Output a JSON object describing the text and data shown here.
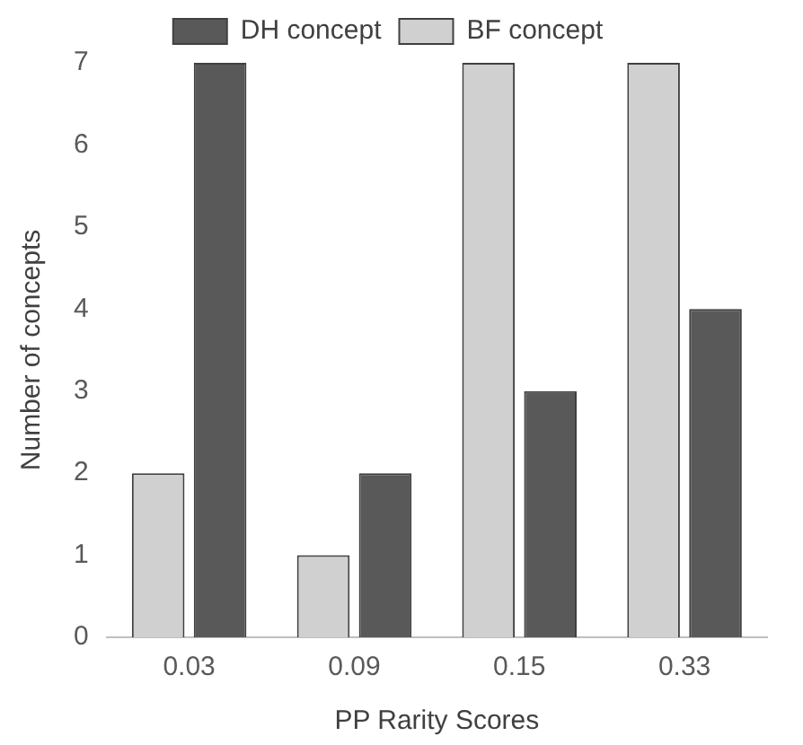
{
  "chart_data": {
    "type": "bar",
    "xlabel": "PP Rarity Scores",
    "ylabel": "Number of concepts",
    "categories": [
      "0.03",
      "0.09",
      "0.15",
      "0.33"
    ],
    "series": [
      {
        "name": "BF concept",
        "color": "#d0d0d0",
        "values": [
          2,
          1,
          7,
          7
        ]
      },
      {
        "name": "DH concept",
        "color": "#595959",
        "values": [
          7,
          2,
          3,
          4
        ]
      }
    ],
    "ylim": [
      0,
      7
    ],
    "yticks": [
      0,
      1,
      2,
      3,
      4,
      5,
      6,
      7
    ],
    "grid": false,
    "legend": "top"
  }
}
